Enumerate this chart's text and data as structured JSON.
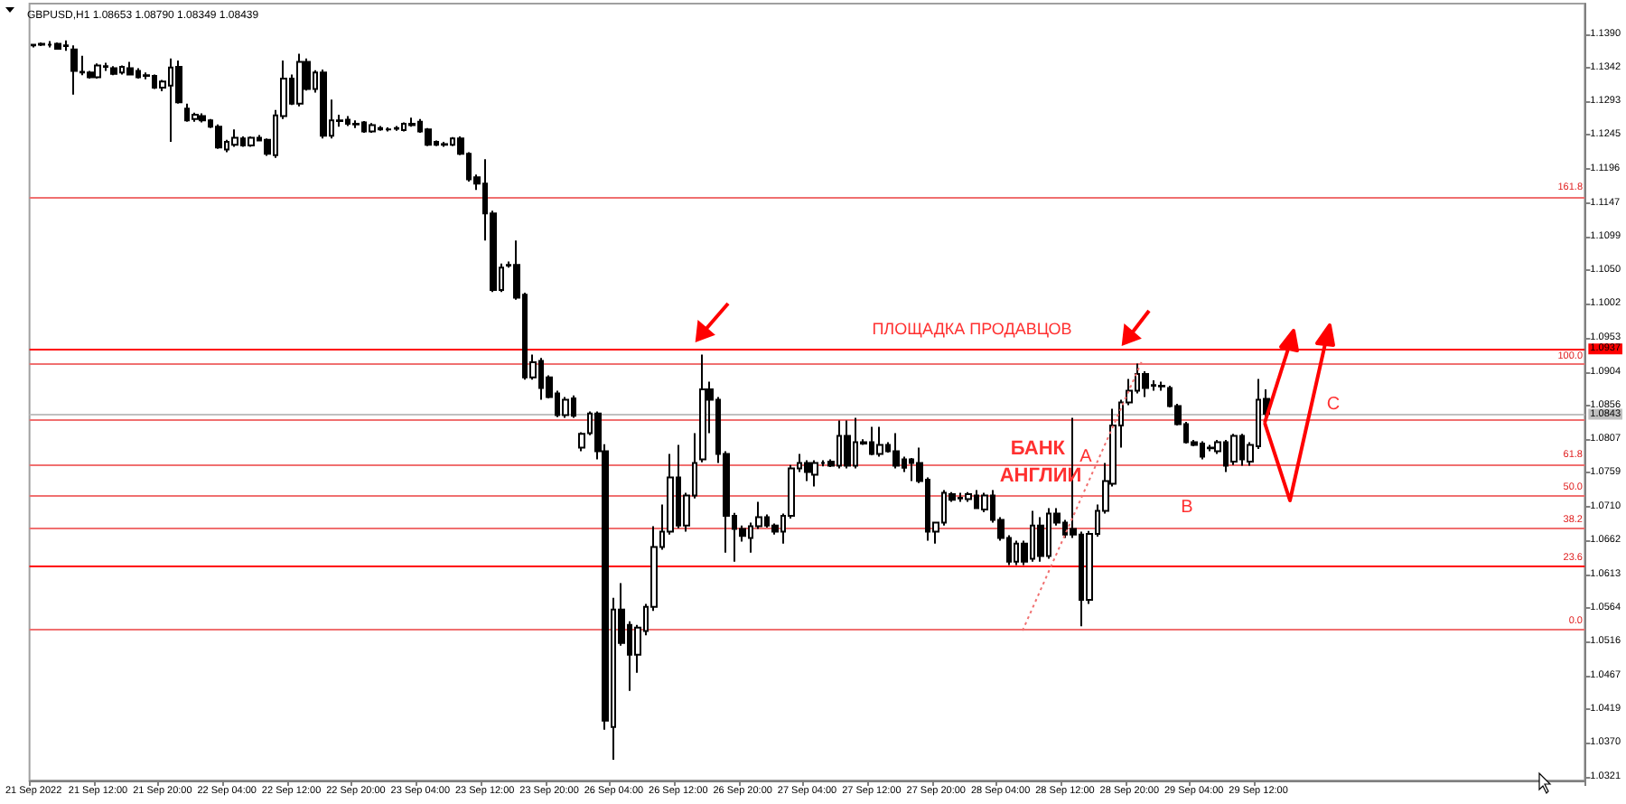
{
  "chart_data": {
    "type": "candlestick",
    "title": "GBPUSD,H1 1.08653 1.08790 1.08349 1.08439",
    "color": "#000000",
    "categories": [
      "21 Sep 2022",
      null,
      null,
      null,
      null,
      null,
      null,
      null,
      "21 Sep 12:00",
      null,
      null,
      null,
      null,
      null,
      null,
      null,
      "21 Sep 20:00",
      null,
      null,
      null,
      null,
      null,
      null,
      null,
      "22 Sep 04:00",
      null,
      null,
      null,
      null,
      null,
      null,
      null,
      "22 Sep 12:00",
      null,
      null,
      null,
      null,
      null,
      null,
      null,
      "22 Sep 20:00",
      null,
      null,
      null,
      null,
      null,
      null,
      null,
      "23 Sep 04:00",
      null,
      null,
      null,
      null,
      null,
      null,
      null,
      "23 Sep 12:00",
      null,
      null,
      null,
      null,
      null,
      null,
      null,
      "23 Sep 20:00",
      null,
      null,
      null,
      null,
      null,
      null,
      null,
      "26 Sep 04:00",
      null,
      null,
      null,
      null,
      null,
      null,
      null,
      "26 Sep 12:00",
      null,
      null,
      null,
      null,
      null,
      null,
      null,
      "26 Sep 20:00",
      null,
      null,
      null,
      null,
      null,
      null,
      null,
      "27 Sep 04:00",
      null,
      null,
      null,
      null,
      null,
      null,
      null,
      "27 Sep 12:00",
      null,
      null,
      null,
      null,
      null,
      null,
      null,
      "27 Sep 20:00",
      null,
      null,
      null,
      null,
      null,
      null,
      null,
      "28 Sep 04:00",
      null,
      null,
      null,
      null,
      null,
      null,
      null,
      "28 Sep 12:00",
      null,
      null,
      null,
      null,
      null,
      null,
      null,
      "28 Sep 20:00",
      null,
      null,
      null,
      null,
      null,
      null,
      null,
      "29 Sep 04:00",
      null,
      null,
      null,
      null,
      null,
      null,
      null,
      "29 Sep 12:00",
      null,
      null,
      null,
      null,
      null,
      null,
      null,
      null,
      null,
      null,
      null,
      null,
      null,
      null,
      null,
      null,
      null,
      null,
      null,
      null,
      null,
      null,
      null,
      null,
      null,
      null,
      null,
      null,
      null,
      null,
      null,
      null,
      null,
      null,
      null,
      null,
      null,
      null,
      null,
      null
    ],
    "ohlc": [
      [
        1.1374,
        1.1376,
        1.1371,
        1.1375
      ],
      [
        1.1375,
        1.1378,
        1.1373,
        1.1376
      ],
      [
        1.1375,
        1.138,
        1.1371,
        1.1375
      ],
      [
        1.1376,
        1.1378,
        1.1368,
        1.1369
      ],
      [
        1.1374,
        1.1381,
        1.1366,
        1.1373
      ],
      [
        1.1368,
        1.1374,
        1.1303,
        1.1337
      ],
      [
        1.1336,
        1.1359,
        1.1331,
        1.1335
      ],
      [
        1.1335,
        1.1337,
        1.1326,
        1.1328
      ],
      [
        1.1328,
        1.1348,
        1.1326,
        1.1345
      ],
      [
        1.1344,
        1.1349,
        1.1337,
        1.1343
      ],
      [
        1.1341,
        1.1344,
        1.1331,
        1.1333
      ],
      [
        1.1335,
        1.1345,
        1.1332,
        1.1343
      ],
      [
        1.1341,
        1.135,
        1.1331,
        1.1332
      ],
      [
        1.1337,
        1.1341,
        1.1326,
        1.1328
      ],
      [
        1.133,
        1.1335,
        1.1325,
        1.1331
      ],
      [
        1.133,
        1.1332,
        1.1311,
        1.1313
      ],
      [
        1.1313,
        1.1324,
        1.1308,
        1.1322
      ],
      [
        1.1316,
        1.1355,
        1.1235,
        1.1342
      ],
      [
        1.1343,
        1.1352,
        1.129,
        1.1292
      ],
      [
        1.1283,
        1.129,
        1.1264,
        1.1266
      ],
      [
        1.1268,
        1.1277,
        1.1264,
        1.1274
      ],
      [
        1.1272,
        1.1276,
        1.1263,
        1.1266
      ],
      [
        1.1266,
        1.1268,
        1.1255,
        1.1257
      ],
      [
        1.1257,
        1.126,
        1.1225,
        1.1227
      ],
      [
        1.1224,
        1.1238,
        1.122,
        1.1235
      ],
      [
        1.1231,
        1.1253,
        1.1228,
        1.1241
      ],
      [
        1.124,
        1.1243,
        1.1228,
        1.123
      ],
      [
        1.123,
        1.1243,
        1.1228,
        1.1241
      ],
      [
        1.1241,
        1.1245,
        1.1236,
        1.1237
      ],
      [
        1.1238,
        1.124,
        1.1215,
        1.1218
      ],
      [
        1.1216,
        1.1281,
        1.1212,
        1.1273
      ],
      [
        1.1272,
        1.1352,
        1.1268,
        1.1326
      ],
      [
        1.1326,
        1.1332,
        1.1288,
        1.129
      ],
      [
        1.129,
        1.1362,
        1.1286,
        1.135
      ],
      [
        1.135,
        1.1355,
        1.1309,
        1.1311
      ],
      [
        1.1311,
        1.1338,
        1.1306,
        1.1335
      ],
      [
        1.1335,
        1.1339,
        1.124,
        1.1244
      ],
      [
        1.1244,
        1.1296,
        1.124,
        1.1266
      ],
      [
        1.1266,
        1.1274,
        1.1257,
        1.1265
      ],
      [
        1.1267,
        1.1272,
        1.1258,
        1.1261
      ],
      [
        1.1261,
        1.1266,
        1.1255,
        1.126
      ],
      [
        1.1263,
        1.1265,
        1.1248,
        1.125
      ],
      [
        1.125,
        1.1262,
        1.1248,
        1.1259
      ],
      [
        1.1255,
        1.1258,
        1.1251,
        1.1253
      ],
      [
        1.1253,
        1.1256,
        1.125,
        1.1253
      ],
      [
        1.1254,
        1.1258,
        1.1251,
        1.1255
      ],
      [
        1.1252,
        1.1263,
        1.125,
        1.1261
      ],
      [
        1.1261,
        1.127,
        1.1257,
        1.1259
      ],
      [
        1.1264,
        1.1268,
        1.1248,
        1.125
      ],
      [
        1.1253,
        1.1255,
        1.1229,
        1.1231
      ],
      [
        1.1235,
        1.1237,
        1.1229,
        1.1231
      ],
      [
        1.1231,
        1.1235,
        1.1228,
        1.1232
      ],
      [
        1.1231,
        1.1242,
        1.1229,
        1.124
      ],
      [
        1.124,
        1.1243,
        1.1216,
        1.1218
      ],
      [
        1.1218,
        1.122,
        1.1178,
        1.1181
      ],
      [
        1.1184,
        1.1188,
        1.1166,
        1.1175
      ],
      [
        1.1175,
        1.121,
        1.1093,
        1.1132
      ],
      [
        1.1132,
        1.1136,
        1.1019,
        1.1022
      ],
      [
        1.1022,
        1.106,
        1.1019,
        1.1054
      ],
      [
        1.1058,
        1.1063,
        1.1054,
        1.1057
      ],
      [
        1.1058,
        1.1093,
        1.1008,
        1.1011
      ],
      [
        1.1015,
        1.1018,
        1.0893,
        1.0896
      ],
      [
        1.0896,
        1.0929,
        1.0893,
        1.0918
      ],
      [
        1.092,
        1.0924,
        1.0864,
        1.0881
      ],
      [
        1.0896,
        1.0899,
        1.0866,
        1.0868
      ],
      [
        1.0873,
        1.0877,
        1.0839,
        1.0842
      ],
      [
        1.0842,
        1.0868,
        1.0838,
        1.0864
      ],
      [
        1.0866,
        1.087,
        1.0838,
        1.0841
      ],
      [
        1.0795,
        1.0817,
        1.079,
        1.0815
      ],
      [
        1.0816,
        1.0847,
        1.0813,
        1.0844
      ],
      [
        1.0844,
        1.0847,
        1.0778,
        1.079
      ],
      [
        1.079,
        1.08,
        1.0389,
        1.0402
      ],
      [
        1.0393,
        1.0579,
        1.0346,
        1.0562
      ],
      [
        1.0562,
        1.06,
        1.051,
        1.0514
      ],
      [
        1.054,
        1.0545,
        1.0445,
        1.0497
      ],
      [
        1.0497,
        1.054,
        1.0471,
        1.0536
      ],
      [
        1.0531,
        1.057,
        1.0525,
        1.0566
      ],
      [
        1.0566,
        1.0682,
        1.056,
        1.0652
      ],
      [
        1.0652,
        1.0713,
        1.0648,
        1.0674
      ],
      [
        1.0674,
        1.0786,
        1.067,
        1.0752
      ],
      [
        1.0752,
        1.0799,
        1.0679,
        1.0683
      ],
      [
        1.0683,
        1.073,
        1.0674,
        1.0726
      ],
      [
        1.0726,
        1.0816,
        1.0722,
        1.0773
      ],
      [
        1.0778,
        1.0929,
        1.0774,
        1.0879
      ],
      [
        1.0879,
        1.089,
        1.0816,
        1.0864
      ],
      [
        1.0864,
        1.0868,
        1.0773,
        1.0786
      ],
      [
        1.0786,
        1.079,
        1.0644,
        1.0697
      ],
      [
        1.0697,
        1.0701,
        1.0631,
        1.0678
      ],
      [
        1.0678,
        1.0683,
        1.066,
        1.0668
      ],
      [
        1.0665,
        1.0687,
        1.0644,
        1.0682
      ],
      [
        1.0682,
        1.0717,
        1.0678,
        1.0695
      ],
      [
        1.0695,
        1.0699,
        1.068,
        1.0683
      ],
      [
        1.0683,
        1.0686,
        1.067,
        1.0674
      ],
      [
        1.0674,
        1.07,
        1.0657,
        1.0697
      ],
      [
        1.0697,
        1.077,
        1.0693,
        1.0765
      ],
      [
        1.0765,
        1.0786,
        1.076,
        1.0773
      ],
      [
        1.0773,
        1.0777,
        1.0747,
        1.076
      ],
      [
        1.0756,
        1.0777,
        1.0739,
        1.0773
      ],
      [
        1.0773,
        1.0777,
        1.0768,
        1.0773
      ],
      [
        1.0775,
        1.0778,
        1.0767,
        1.0769
      ],
      [
        1.0769,
        1.0834,
        1.0765,
        1.0812
      ],
      [
        1.0812,
        1.0834,
        1.0765,
        1.0769
      ],
      [
        1.0769,
        1.0838,
        1.0765,
        1.0803
      ],
      [
        1.0803,
        1.0807,
        1.0799,
        1.0801
      ],
      [
        1.0803,
        1.0825,
        1.0784,
        1.0786
      ],
      [
        1.0786,
        1.0825,
        1.0782,
        1.0799
      ],
      [
        1.0799,
        1.0803,
        1.0788,
        1.079
      ],
      [
        1.079,
        1.0816,
        1.0765,
        1.0769
      ],
      [
        1.0778,
        1.0782,
        1.076,
        1.0766
      ],
      [
        1.0778,
        1.078,
        1.0747,
        1.0773
      ],
      [
        1.0773,
        1.0795,
        1.0744,
        1.0747
      ],
      [
        1.0749,
        1.0752,
        1.0661,
        1.0674
      ],
      [
        1.0674,
        1.0687,
        1.0657,
        1.0687
      ],
      [
        1.0687,
        1.0734,
        1.0683,
        1.073
      ],
      [
        1.0728,
        1.0731,
        1.0717,
        1.072
      ],
      [
        1.0723,
        1.073,
        1.0717,
        1.0722
      ],
      [
        1.0721,
        1.0731,
        1.0717,
        1.0728
      ],
      [
        1.0726,
        1.0734,
        1.0707,
        1.0708
      ],
      [
        1.0706,
        1.073,
        1.0702,
        1.0726
      ],
      [
        1.0726,
        1.0734,
        1.0687,
        1.0691
      ],
      [
        1.0691,
        1.0695,
        1.0661,
        1.0665
      ],
      [
        1.0665,
        1.0669,
        1.0626,
        1.0631
      ],
      [
        1.0631,
        1.0661,
        1.0626,
        1.0657
      ],
      [
        1.0657,
        1.0661,
        1.0626,
        1.0631
      ],
      [
        1.0635,
        1.0704,
        1.0631,
        1.0683
      ],
      [
        1.0683,
        1.0695,
        1.0631,
        1.0639
      ],
      [
        1.0639,
        1.0708,
        1.0635,
        1.07
      ],
      [
        1.07,
        1.0708,
        1.0683,
        1.0687
      ],
      [
        1.0687,
        1.0691,
        1.0665,
        1.067
      ],
      [
        1.0678,
        1.0838,
        1.0665,
        1.067
      ],
      [
        1.067,
        1.0674,
        1.0538,
        1.0576
      ],
      [
        1.0576,
        1.0675,
        1.057,
        1.0671
      ],
      [
        1.0671,
        1.0713,
        1.0667,
        1.0704
      ],
      [
        1.0704,
        1.0773,
        1.07,
        1.0747
      ],
      [
        1.0743,
        1.0851,
        1.0739,
        1.0827
      ],
      [
        1.0827,
        1.0864,
        1.0795,
        1.086
      ],
      [
        1.086,
        1.0894,
        1.0856,
        1.0877
      ],
      [
        1.0877,
        1.0916,
        1.0873,
        1.0901
      ],
      [
        1.0901,
        1.0905,
        1.0868,
        1.0881
      ],
      [
        1.0885,
        1.0892,
        1.0877,
        1.0884
      ],
      [
        1.0884,
        1.089,
        1.0877,
        1.0883
      ],
      [
        1.0881,
        1.0884,
        1.0853,
        1.0855
      ],
      [
        1.0855,
        1.0858,
        1.0827,
        1.0829
      ],
      [
        1.0829,
        1.0832,
        1.0801,
        1.0803
      ],
      [
        1.0803,
        1.0806,
        1.0797,
        1.0799
      ],
      [
        1.0801,
        1.0804,
        1.0778,
        1.0782
      ],
      [
        1.0795,
        1.0799,
        1.079,
        1.0794
      ],
      [
        1.079,
        1.0806,
        1.0786,
        1.0803
      ],
      [
        1.0803,
        1.0806,
        1.076,
        1.0769
      ],
      [
        1.0775,
        1.0815,
        1.077,
        1.0812
      ],
      [
        1.0812,
        1.0815,
        1.0769,
        1.0778
      ],
      [
        1.0775,
        1.0803,
        1.0769,
        1.0799
      ],
      [
        1.0797,
        1.0894,
        1.0793,
        1.0864
      ],
      [
        1.08653,
        1.0879,
        1.08349,
        1.08439
      ],
      null,
      null,
      null,
      null,
      null,
      null,
      null,
      null,
      null,
      null,
      null,
      null,
      null,
      null,
      null,
      null,
      null,
      null,
      null,
      null,
      null,
      null,
      null,
      null,
      null,
      null,
      null,
      null,
      null,
      null,
      null,
      null,
      null,
      null,
      null,
      null,
      null,
      null,
      null
    ],
    "ylim": [
      1.0316,
      1.1434
    ],
    "yticks": [
      {
        "value": 1.139,
        "label": "1.1390"
      },
      1.1342,
      1.1293,
      1.1245,
      1.1196,
      1.1147,
      1.1099,
      {
        "value": 1.105,
        "label": "1.1050"
      },
      1.1002,
      1.0953,
      1.0904,
      1.0856,
      1.0807,
      1.0759,
      {
        "value": 1.071,
        "label": "1.0710"
      },
      1.0662,
      1.0613,
      1.0564,
      1.0516,
      1.0467,
      1.0419,
      {
        "value": 1.037,
        "label": "1.0370"
      },
      1.0321
    ],
    "ref_lines": [
      {
        "axis": "y",
        "value": 1.0937,
        "label": "1.0937",
        "color": "#ff0000"
      },
      {
        "axis": "y",
        "value": 1.0843,
        "label": "1.0843",
        "color": "#c0c0c0"
      },
      {
        "axis": "y",
        "value": 1.1154,
        "color": "#f07070"
      },
      {
        "axis": "y",
        "value": 1.0917,
        "color": "#f07070"
      },
      {
        "axis": "y",
        "value": 1.0835,
        "color": "#f07070"
      },
      {
        "axis": "y",
        "value": 1.0771,
        "color": "#f07070"
      },
      {
        "axis": "y",
        "value": 1.0726,
        "color": "#f07070"
      },
      {
        "axis": "y",
        "value": 1.068,
        "color": "#f07070"
      },
      {
        "axis": "y",
        "value": 1.0624,
        "color": "#f07070"
      },
      {
        "axis": "y",
        "value": 1.0534,
        "color": "#f07070"
      },
      {
        "axis": "y",
        "value": 1.0626,
        "color": "#ff0000"
      }
    ],
    "annotations": [
      "ПЛОЩАДКА ПРОДАВЦОВ",
      "БАНК АНГЛИИ",
      "A",
      "B",
      "C",
      "161.8",
      "100.0",
      "61.8",
      "50.0",
      "38.2",
      "23.6",
      "0.0"
    ]
  }
}
